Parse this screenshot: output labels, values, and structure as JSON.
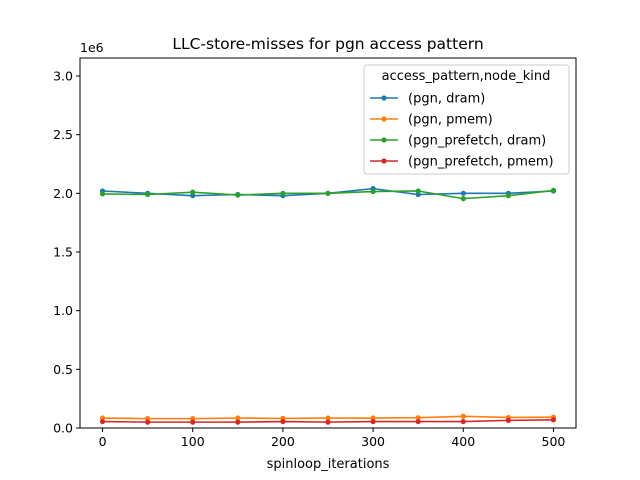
{
  "chart_data": {
    "type": "line",
    "title": "LLC-store-misses for pgn access pattern",
    "xlabel": "spinloop_iterations",
    "ylabel": "",
    "y_offset_label": "1e6",
    "xlim": [
      -25,
      525
    ],
    "ylim": [
      0,
      3.0
    ],
    "x_ticks": [
      0,
      100,
      200,
      300,
      400,
      500
    ],
    "x_tick_labels": [
      "0",
      "100",
      "200",
      "300",
      "400",
      "500"
    ],
    "y_ticks": [
      0,
      0.5,
      1.0,
      1.5,
      2.0,
      2.5,
      3.0
    ],
    "y_tick_labels": [
      "0.0",
      "0.5",
      "1.0",
      "1.5",
      "2.0",
      "2.5",
      "3.0"
    ],
    "grid": false,
    "legend": {
      "title": "access_pattern,node_kind",
      "placement": "top-right"
    },
    "x": [
      0,
      50,
      100,
      150,
      200,
      250,
      300,
      350,
      400,
      450,
      500
    ],
    "series": [
      {
        "name": "(pgn, dram)",
        "color": "#1f77b4",
        "values": [
          2.02,
          2.0,
          1.98,
          1.99,
          1.98,
          2.0,
          2.04,
          1.99,
          2.0,
          2.0,
          2.02
        ]
      },
      {
        "name": "(pgn, pmem)",
        "color": "#ff7f0e",
        "values": [
          0.085,
          0.08,
          0.08,
          0.085,
          0.082,
          0.085,
          0.085,
          0.088,
          0.1,
          0.09,
          0.092
        ]
      },
      {
        "name": "(pgn_prefetch, dram)",
        "color": "#2ca02c",
        "values": [
          1.995,
          1.99,
          2.01,
          1.985,
          2.0,
          2.0,
          2.015,
          2.02,
          1.955,
          1.98,
          2.025
        ]
      },
      {
        "name": "(pgn_prefetch, pmem)",
        "color": "#d62728",
        "values": [
          0.055,
          0.05,
          0.05,
          0.05,
          0.055,
          0.05,
          0.055,
          0.055,
          0.055,
          0.065,
          0.07
        ]
      }
    ]
  }
}
